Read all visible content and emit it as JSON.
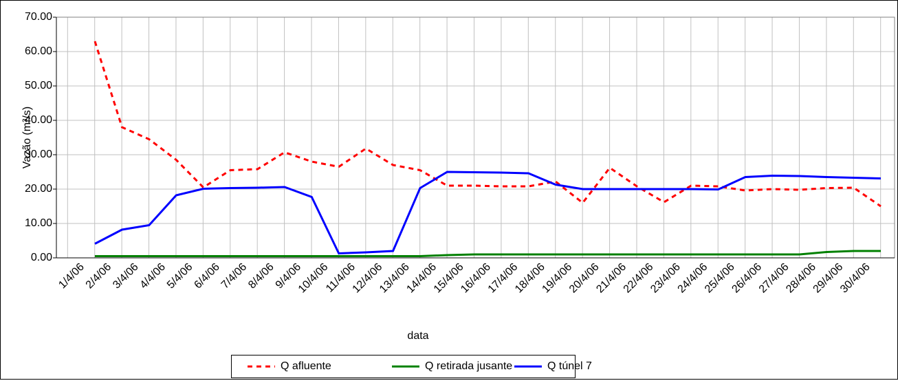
{
  "chart_data": {
    "type": "line",
    "x_label": "data",
    "y_label": "Vazão (m³/s)",
    "categories": [
      "1/4/06",
      "2/4/06",
      "3/4/06",
      "4/4/06",
      "5/4/06",
      "6/4/06",
      "7/4/06",
      "8/4/06",
      "9/4/06",
      "10/4/06",
      "11/4/06",
      "12/4/06",
      "13/4/06",
      "14/4/06",
      "15/4/06",
      "16/4/06",
      "17/4/06",
      "18/4/06",
      "19/4/06",
      "20/4/06",
      "21/4/06",
      "22/4/06",
      "23/4/06",
      "24/4/06",
      "25/4/06",
      "26/4/06",
      "27/4/06",
      "28/4/06",
      "29/4/06",
      "30/4/06"
    ],
    "series": [
      {
        "name": "Q afluente",
        "color": "#ff0000",
        "dash": true,
        "values": [
          63,
          38,
          34.5,
          28.5,
          20.5,
          25.5,
          25.8,
          30.7,
          28,
          26.5,
          31.8,
          27,
          25.5,
          21,
          21,
          20.8,
          20.8,
          22.2,
          16,
          26.2,
          20.8,
          16.2,
          21,
          20.8,
          19.6,
          20,
          19.8,
          20.3,
          20.4,
          15
        ]
      },
      {
        "name": "Q retirada jusante",
        "color": "#008000",
        "dash": false,
        "values": [
          0.5,
          0.5,
          0.5,
          0.5,
          0.5,
          0.5,
          0.5,
          0.5,
          0.5,
          0.5,
          0.5,
          0.5,
          0.5,
          0.8,
          1,
          1,
          1,
          1,
          1,
          1,
          1,
          1,
          1,
          1,
          1,
          1,
          1,
          1.7,
          2,
          2
        ]
      },
      {
        "name": "Q túnel 7",
        "color": "#0000ff",
        "dash": false,
        "values": [
          4.1,
          8.2,
          9.5,
          18.2,
          20.1,
          20.3,
          20.4,
          20.6,
          17.7,
          1.3,
          1.6,
          2,
          20.3,
          25,
          24.9,
          24.8,
          24.6,
          21.3,
          20,
          20,
          20,
          20,
          20,
          19.9,
          23.5,
          23.9,
          23.8,
          23.5,
          23.3,
          23.1
        ]
      }
    ],
    "ylim": [
      0,
      70
    ],
    "yticks": [
      {
        "value": 0,
        "label": "0.00"
      },
      {
        "value": 10,
        "label": "10.00"
      },
      {
        "value": 20,
        "label": "20.00"
      },
      {
        "value": 30,
        "label": "30.00"
      },
      {
        "value": 40,
        "label": "40.00"
      },
      {
        "value": 50,
        "label": "50.00"
      },
      {
        "value": 60,
        "label": "60.00"
      },
      {
        "value": 70,
        "label": "70.00"
      }
    ],
    "grid": true,
    "legend": "bottom"
  }
}
